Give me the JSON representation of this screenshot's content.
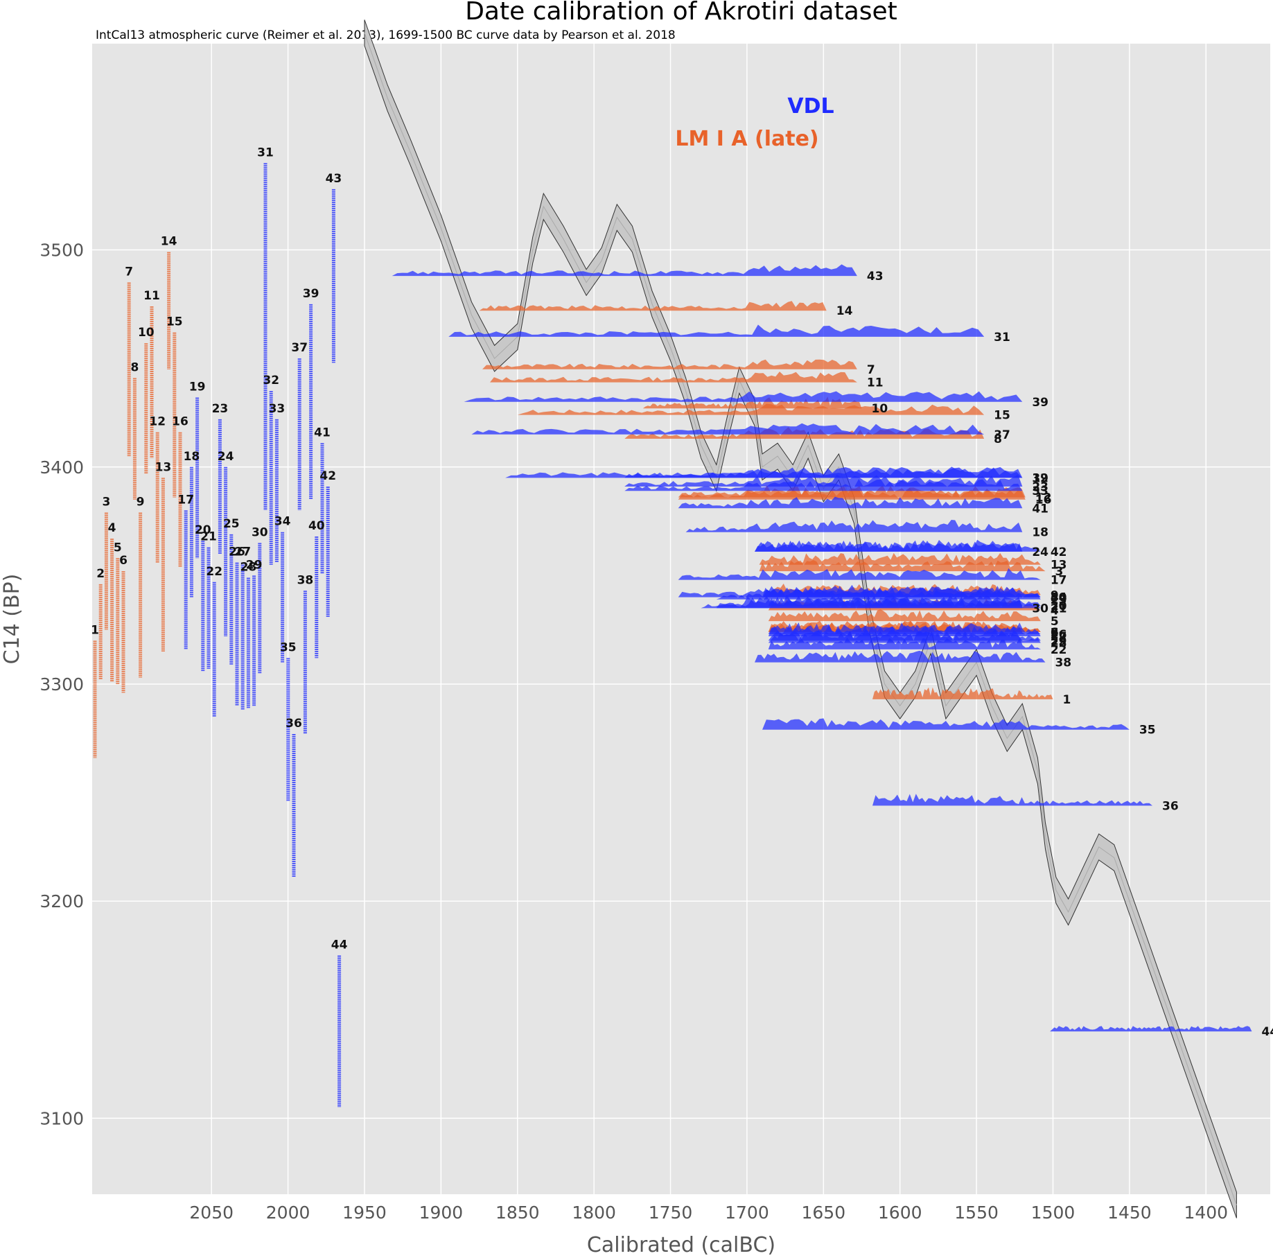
{
  "chart_data": {
    "type": "area",
    "title": "Date calibration of Akrotiri dataset",
    "subtitle": "IntCal13 atmospheric curve (Reimer et al. 2013), 1699-1500 BC curve data by Pearson et al. 2018",
    "xlabel": "Calibrated (calBC)",
    "ylabel": "C14 (BP)",
    "x_ticks": [
      2050,
      2000,
      1950,
      1900,
      1850,
      1800,
      1750,
      1700,
      1650,
      1600,
      1550,
      1500,
      1450,
      1400
    ],
    "y_ticks": [
      3100,
      3200,
      3300,
      3400,
      3500
    ],
    "xlim": [
      2128,
      1358
    ],
    "ylim": [
      3065,
      3595
    ],
    "grid": true,
    "legend_placement": "top-center",
    "legend": [
      {
        "name": "VDL",
        "color": "#1f2bff"
      },
      {
        "name": "LM I A (late)",
        "color": "#e8622a"
      }
    ],
    "curve": [
      [
        1950,
        3600
      ],
      [
        1935,
        3570
      ],
      [
        1920,
        3545
      ],
      [
        1900,
        3510
      ],
      [
        1880,
        3470
      ],
      [
        1865,
        3450
      ],
      [
        1850,
        3460
      ],
      [
        1840,
        3500
      ],
      [
        1833,
        3520
      ],
      [
        1820,
        3505
      ],
      [
        1805,
        3485
      ],
      [
        1795,
        3495
      ],
      [
        1785,
        3515
      ],
      [
        1775,
        3505
      ],
      [
        1762,
        3475
      ],
      [
        1750,
        3455
      ],
      [
        1740,
        3435
      ],
      [
        1730,
        3410
      ],
      [
        1720,
        3395
      ],
      [
        1712,
        3420
      ],
      [
        1705,
        3440
      ],
      [
        1695,
        3425
      ],
      [
        1690,
        3400
      ],
      [
        1680,
        3405
      ],
      [
        1670,
        3395
      ],
      [
        1660,
        3410
      ],
      [
        1650,
        3390
      ],
      [
        1640,
        3400
      ],
      [
        1630,
        3380
      ],
      [
        1620,
        3330
      ],
      [
        1610,
        3300
      ],
      [
        1600,
        3290
      ],
      [
        1590,
        3300
      ],
      [
        1580,
        3320
      ],
      [
        1570,
        3290
      ],
      [
        1560,
        3300
      ],
      [
        1550,
        3310
      ],
      [
        1540,
        3290
      ],
      [
        1530,
        3275
      ],
      [
        1520,
        3285
      ],
      [
        1510,
        3260
      ],
      [
        1505,
        3230
      ],
      [
        1498,
        3205
      ],
      [
        1490,
        3195
      ],
      [
        1480,
        3210
      ],
      [
        1470,
        3225
      ],
      [
        1460,
        3220
      ],
      [
        1450,
        3200
      ],
      [
        1440,
        3180
      ],
      [
        1430,
        3160
      ],
      [
        1420,
        3140
      ],
      [
        1410,
        3120
      ],
      [
        1400,
        3100
      ],
      [
        1390,
        3080
      ],
      [
        1380,
        3060
      ]
    ],
    "curve_band": 6,
    "samples": [
      {
        "id": "1",
        "group": "LM I A (late)",
        "c14": 3293,
        "sd": 27,
        "range": [
          1618,
          1500
        ]
      },
      {
        "id": "2",
        "group": "LM I A (late)",
        "c14": 3324,
        "sd": 22,
        "range": [
          1686,
          1508
        ]
      },
      {
        "id": "3",
        "group": "LM I A (late)",
        "c14": 3352,
        "sd": 27,
        "range": [
          1692,
          1505
        ]
      },
      {
        "id": "4",
        "group": "LM I A (late)",
        "c14": 3334,
        "sd": 33,
        "range": [
          1686,
          1508
        ]
      },
      {
        "id": "5",
        "group": "LM I A (late)",
        "c14": 3329,
        "sd": 29,
        "range": [
          1686,
          1508
        ]
      },
      {
        "id": "6",
        "group": "LM I A (late)",
        "c14": 3324,
        "sd": 28,
        "range": [
          1686,
          1508
        ]
      },
      {
        "id": "7",
        "group": "LM I A (late)",
        "c14": 3445,
        "sd": 40,
        "range": [
          1873,
          1628
        ]
      },
      {
        "id": "8",
        "group": "LM I A (late)",
        "c14": 3413,
        "sd": 28,
        "range": [
          1780,
          1545
        ]
      },
      {
        "id": "9",
        "group": "LM I A (late)",
        "c14": 3341,
        "sd": 38,
        "range": [
          1686,
          1508
        ]
      },
      {
        "id": "10",
        "group": "LM I A (late)",
        "c14": 3427,
        "sd": 30,
        "range": [
          1768,
          1625
        ]
      },
      {
        "id": "11",
        "group": "LM I A (late)",
        "c14": 3439,
        "sd": 35,
        "range": [
          1868,
          1628
        ]
      },
      {
        "id": "12",
        "group": "LM I A (late)",
        "c14": 3386,
        "sd": 30,
        "range": [
          1745,
          1518
        ]
      },
      {
        "id": "13",
        "group": "LM I A (late)",
        "c14": 3355,
        "sd": 40,
        "range": [
          1692,
          1508
        ]
      },
      {
        "id": "14",
        "group": "LM I A (late)",
        "c14": 3472,
        "sd": 27,
        "range": [
          1875,
          1648
        ]
      },
      {
        "id": "15",
        "group": "LM I A (late)",
        "c14": 3424,
        "sd": 38,
        "range": [
          1850,
          1545
        ]
      },
      {
        "id": "16",
        "group": "LM I A (late)",
        "c14": 3385,
        "sd": 31,
        "range": [
          1745,
          1518
        ]
      },
      {
        "id": "17",
        "group": "VDL",
        "c14": 3348,
        "sd": 32,
        "range": [
          1745,
          1508
        ]
      },
      {
        "id": "18",
        "group": "VDL",
        "c14": 3370,
        "sd": 30,
        "range": [
          1740,
          1520
        ]
      },
      {
        "id": "19",
        "group": "VDL",
        "c14": 3395,
        "sd": 37,
        "range": [
          1858,
          1520
        ]
      },
      {
        "id": "20",
        "group": "VDL",
        "c14": 3336,
        "sd": 30,
        "range": [
          1686,
          1508
        ]
      },
      {
        "id": "21",
        "group": "VDL",
        "c14": 3335,
        "sd": 28,
        "range": [
          1720,
          1508
        ]
      },
      {
        "id": "22",
        "group": "VDL",
        "c14": 3316,
        "sd": 31,
        "range": [
          1686,
          1508
        ]
      },
      {
        "id": "23",
        "group": "VDL",
        "c14": 3391,
        "sd": 31,
        "range": [
          1780,
          1520
        ]
      },
      {
        "id": "24",
        "group": "VDL",
        "c14": 3361,
        "sd": 39,
        "range": [
          1695,
          1520
        ]
      },
      {
        "id": "25",
        "group": "VDL",
        "c14": 3339,
        "sd": 30,
        "range": [
          1720,
          1508
        ]
      },
      {
        "id": "26",
        "group": "VDL",
        "c14": 3323,
        "sd": 33,
        "range": [
          1686,
          1508
        ]
      },
      {
        "id": "27",
        "group": "VDL",
        "c14": 3322,
        "sd": 34,
        "range": [
          1686,
          1508
        ]
      },
      {
        "id": "28",
        "group": "VDL",
        "c14": 3319,
        "sd": 30,
        "range": [
          1686,
          1508
        ]
      },
      {
        "id": "29",
        "group": "VDL",
        "c14": 3320,
        "sd": 30,
        "range": [
          1686,
          1508
        ]
      },
      {
        "id": "30",
        "group": "VDL",
        "c14": 3335,
        "sd": 30,
        "range": [
          1730,
          1520
        ]
      },
      {
        "id": "31",
        "group": "VDL",
        "c14": 3460,
        "sd": 80,
        "range": [
          1895,
          1545
        ]
      },
      {
        "id": "32",
        "group": "VDL",
        "c14": 3395,
        "sd": 40,
        "range": [
          1780,
          1520
        ]
      },
      {
        "id": "33",
        "group": "VDL",
        "c14": 3389,
        "sd": 33,
        "range": [
          1780,
          1520
        ]
      },
      {
        "id": "34",
        "group": "VDL",
        "c14": 3340,
        "sd": 30,
        "range": [
          1690,
          1508
        ]
      },
      {
        "id": "35",
        "group": "VDL",
        "c14": 3279,
        "sd": 33,
        "range": [
          1690,
          1450
        ]
      },
      {
        "id": "36",
        "group": "VDL",
        "c14": 3244,
        "sd": 33,
        "range": [
          1618,
          1435
        ]
      },
      {
        "id": "37",
        "group": "VDL",
        "c14": 3415,
        "sd": 35,
        "range": [
          1880,
          1545
        ]
      },
      {
        "id": "38",
        "group": "VDL",
        "c14": 3310,
        "sd": 33,
        "range": [
          1695,
          1505
        ]
      },
      {
        "id": "39",
        "group": "VDL",
        "c14": 3430,
        "sd": 45,
        "range": [
          1885,
          1520
        ]
      },
      {
        "id": "40",
        "group": "VDL",
        "c14": 3340,
        "sd": 28,
        "range": [
          1745,
          1508
        ]
      },
      {
        "id": "41",
        "group": "VDL",
        "c14": 3381,
        "sd": 30,
        "range": [
          1745,
          1520
        ]
      },
      {
        "id": "42",
        "group": "VDL",
        "c14": 3361,
        "sd": 30,
        "range": [
          1695,
          1508
        ]
      },
      {
        "id": "43",
        "group": "VDL",
        "c14": 3488,
        "sd": 40,
        "range": [
          1932,
          1628
        ]
      },
      {
        "id": "44",
        "group": "VDL",
        "c14": 3140,
        "sd": 35,
        "range": [
          1502,
          1370
        ]
      }
    ]
  }
}
